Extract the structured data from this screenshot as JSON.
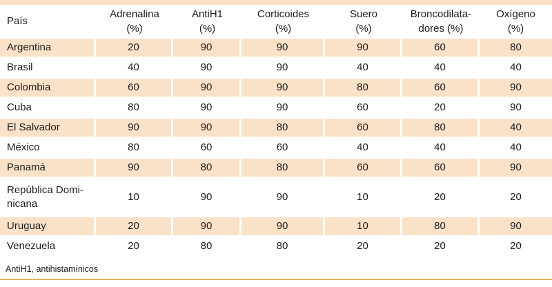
{
  "colors": {
    "row_shade": "#fae2c8",
    "top_band": "#fae2c8",
    "bottom_rule": "#e8b45c",
    "text": "#1c1c1c"
  },
  "table": {
    "headers": [
      {
        "id": "pais",
        "label": "País"
      },
      {
        "id": "adrenalina",
        "label": "Adrenalina\n(%)"
      },
      {
        "id": "antih1",
        "label": "AntiH1\n(%)"
      },
      {
        "id": "corticoides",
        "label": "Corticoides\n(%)"
      },
      {
        "id": "suero",
        "label": "Suero\n(%)"
      },
      {
        "id": "broncodilatadores",
        "label": "Broncodilata-\ndores (%)"
      },
      {
        "id": "oxigeno",
        "label": "Oxígeno\n(%)"
      }
    ],
    "rows": [
      {
        "country": "Argentina",
        "values": [
          20,
          90,
          90,
          90,
          60,
          80
        ]
      },
      {
        "country": "Brasil",
        "values": [
          40,
          90,
          90,
          40,
          40,
          40
        ]
      },
      {
        "country": "Colombia",
        "values": [
          60,
          90,
          90,
          80,
          60,
          90
        ]
      },
      {
        "country": "Cuba",
        "values": [
          80,
          90,
          90,
          60,
          20,
          90
        ]
      },
      {
        "country": "El Salvador",
        "values": [
          90,
          90,
          80,
          60,
          80,
          40
        ]
      },
      {
        "country": "México",
        "values": [
          80,
          60,
          60,
          40,
          40,
          40
        ]
      },
      {
        "country": "Panamá",
        "values": [
          90,
          80,
          80,
          60,
          60,
          90
        ]
      },
      {
        "country": "República Domi-\nnicana",
        "values": [
          10,
          90,
          90,
          10,
          20,
          20
        ]
      },
      {
        "country": "Uruguay",
        "values": [
          20,
          90,
          90,
          10,
          80,
          90
        ]
      },
      {
        "country": "Venezuela",
        "values": [
          20,
          80,
          80,
          20,
          20,
          20
        ]
      }
    ]
  },
  "footnote": "AntiH1, antihistamínicos"
}
